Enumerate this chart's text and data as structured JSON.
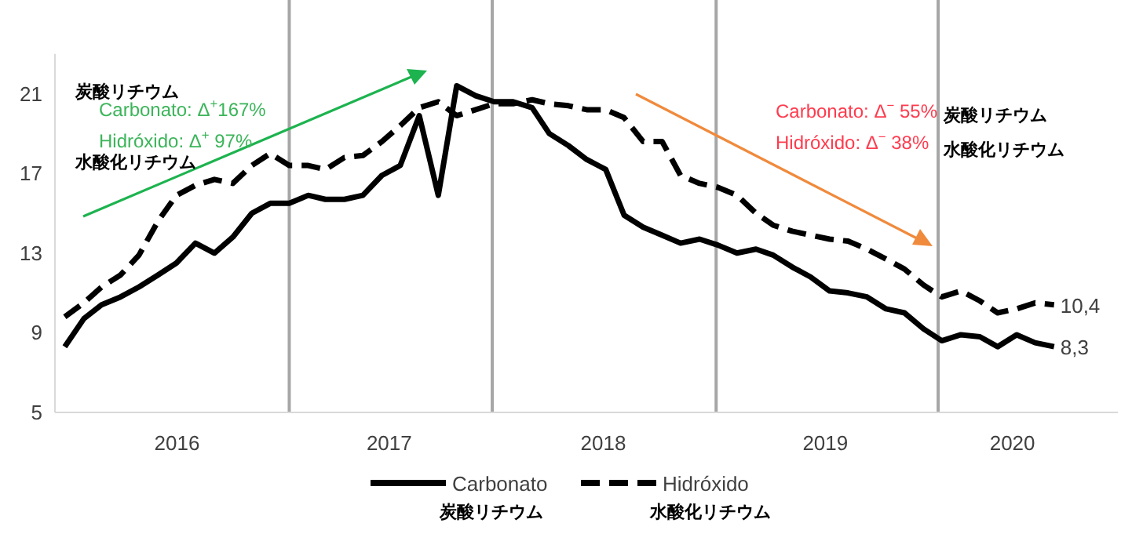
{
  "chart_data": {
    "type": "line",
    "x": [
      "2016-01",
      "2016-02",
      "2016-03",
      "2016-04",
      "2016-05",
      "2016-06",
      "2016-07",
      "2016-08",
      "2016-09",
      "2016-10",
      "2016-11",
      "2016-12",
      "2017-01",
      "2017-02",
      "2017-03",
      "2017-04",
      "2017-05",
      "2017-06",
      "2017-07",
      "2017-08",
      "2017-09",
      "2017-10",
      "2017-11",
      "2017-12",
      "2018-01",
      "2018-02",
      "2018-03",
      "2018-04",
      "2018-05",
      "2018-06",
      "2018-07",
      "2018-08",
      "2018-09",
      "2018-10",
      "2018-11",
      "2018-12",
      "2019-01",
      "2019-02",
      "2019-03",
      "2019-04",
      "2019-05",
      "2019-06",
      "2019-07",
      "2019-08",
      "2019-09",
      "2019-10",
      "2019-11",
      "2019-12",
      "2020-01",
      "2020-02",
      "2020-03",
      "2020-04",
      "2020-05",
      "2020-06"
    ],
    "series": [
      {
        "name": "Carbonato\n炭酸リチウム",
        "color": "#000000",
        "line_style": "solid",
        "values": [
          8.3,
          9.7,
          10.4,
          10.8,
          11.3,
          11.9,
          12.5,
          13.5,
          13.0,
          13.8,
          15.0,
          15.5,
          15.5,
          15.9,
          15.7,
          15.7,
          15.9,
          16.9,
          17.4,
          19.9,
          15.9,
          21.4,
          20.9,
          20.6,
          20.6,
          20.3,
          19.0,
          18.4,
          17.7,
          17.2,
          14.9,
          14.3,
          13.9,
          13.5,
          13.7,
          13.4,
          13.0,
          13.2,
          12.9,
          12.3,
          11.8,
          11.1,
          11.0,
          10.8,
          10.2,
          10.0,
          9.2,
          8.6,
          8.9,
          8.8,
          8.3,
          8.9,
          8.5,
          8.3
        ],
        "value_labels": [
          null,
          null,
          null,
          null,
          null,
          null,
          null,
          null,
          null,
          null,
          null,
          null,
          null,
          null,
          null,
          null,
          null,
          null,
          null,
          null,
          null,
          null,
          null,
          null,
          null,
          null,
          null,
          null,
          null,
          null,
          null,
          null,
          null,
          null,
          null,
          null,
          null,
          null,
          null,
          null,
          null,
          null,
          null,
          null,
          null,
          null,
          null,
          null,
          null,
          null,
          null,
          null,
          null,
          "8,3"
        ]
      },
      {
        "name": "Hidróxido\n水酸化リチウム",
        "color": "#000000",
        "line_style": "dashed",
        "values": [
          9.8,
          10.5,
          11.3,
          11.9,
          12.9,
          14.6,
          15.9,
          16.4,
          16.7,
          16.5,
          17.4,
          18.0,
          17.4,
          17.4,
          17.2,
          17.8,
          17.9,
          18.6,
          19.4,
          20.3,
          20.6,
          19.9,
          20.2,
          20.5,
          20.5,
          20.7,
          20.5,
          20.4,
          20.2,
          20.2,
          19.8,
          18.6,
          18.6,
          16.9,
          16.5,
          16.3,
          15.9,
          15.0,
          14.4,
          14.1,
          13.9,
          13.7,
          13.6,
          13.2,
          12.7,
          12.2,
          11.4,
          10.8,
          11.1,
          10.6,
          10.0,
          10.2,
          10.5,
          10.4
        ],
        "value_labels": [
          null,
          null,
          null,
          null,
          null,
          null,
          null,
          null,
          null,
          null,
          null,
          null,
          null,
          null,
          null,
          null,
          null,
          null,
          null,
          null,
          null,
          null,
          null,
          null,
          null,
          null,
          null,
          null,
          null,
          null,
          null,
          null,
          null,
          null,
          null,
          null,
          null,
          null,
          null,
          null,
          null,
          null,
          null,
          null,
          null,
          null,
          null,
          null,
          null,
          null,
          null,
          null,
          null,
          "10,4"
        ]
      }
    ],
    "xlim": [
      "2015-12-16",
      "2020-09-13"
    ],
    "xticks": [
      {
        "value": "2016-07-02",
        "label": "2016"
      },
      {
        "value": "2017-06-13",
        "label": "2017"
      },
      {
        "value": "2018-05-28",
        "label": "2018"
      },
      {
        "value": "2019-05-25",
        "label": "2019"
      },
      {
        "value": "2020-03-25",
        "label": "2020"
      }
    ],
    "ylim": [
      5,
      23
    ],
    "yticks": [
      5,
      9,
      13,
      17,
      21
    ],
    "ref_lines": [
      {
        "axis": "x",
        "value": "2017-01-01",
        "color": "#a6a6a6"
      },
      {
        "axis": "x",
        "value": "2017-11-28",
        "color": "#a6a6a6"
      },
      {
        "axis": "x",
        "value": "2018-11-28",
        "color": "#a6a6a6"
      },
      {
        "axis": "x",
        "value": "2019-11-25",
        "color": "#a6a6a6"
      }
    ],
    "annotations": [
      "炭酸リチウム",
      "Carbonato: Δ$^{+}$167%",
      "Hidróxido: Δ$^{+}$ 97%",
      "水酸化リチウム",
      "Carbonato: Δ$^{−}$ 55%",
      "炭酸リチウム",
      "Hidróxido: Δ$^{−}$ 38%",
      "水酸化リチウム"
    ],
    "legend": "bottom"
  }
}
